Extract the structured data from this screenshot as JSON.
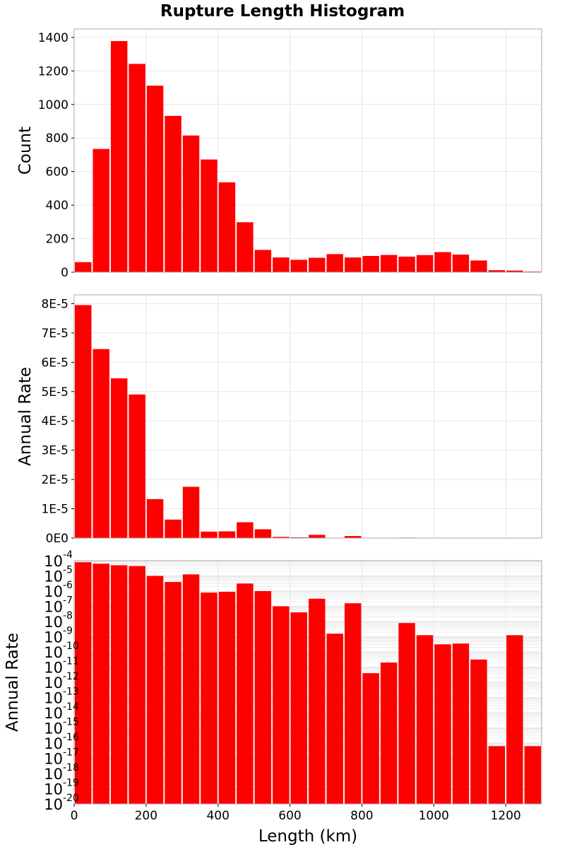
{
  "chart_data": {
    "title": "Rupture Length Histogram",
    "type": "bar",
    "bar_color": "#ff0000",
    "grid_color": "#e6e6e6",
    "x": {
      "label": "Length (km)",
      "range": [
        0,
        1300
      ],
      "ticks": [
        0,
        200,
        400,
        600,
        800,
        1000,
        1200
      ],
      "bin_width": 50,
      "bin_starts": [
        0,
        50,
        100,
        150,
        200,
        250,
        300,
        350,
        400,
        450,
        500,
        550,
        600,
        650,
        700,
        750,
        800,
        850,
        900,
        950,
        1000,
        1050,
        1100,
        1150,
        1200,
        1250
      ]
    },
    "panels": [
      {
        "ylabel": "Count",
        "scale": "linear",
        "ylim": [
          0,
          1450
        ],
        "yticks": [
          0,
          200,
          400,
          600,
          800,
          1000,
          1200,
          1400
        ],
        "ytick_labels": [
          "0",
          "200",
          "400",
          "600",
          "800",
          "1000",
          "1200",
          "1400"
        ],
        "values": [
          60,
          735,
          1378,
          1242,
          1112,
          932,
          815,
          672,
          536,
          298,
          133,
          88,
          74,
          86,
          108,
          88,
          97,
          103,
          93,
          102,
          120,
          105,
          70,
          12,
          10,
          4
        ]
      },
      {
        "ylabel": "Annual Rate",
        "scale": "linear",
        "ylim": [
          0,
          8.3e-05
        ],
        "yticks": [
          0,
          1e-05,
          2e-05,
          3e-05,
          4e-05,
          5e-05,
          6e-05,
          7e-05,
          8e-05
        ],
        "ytick_labels": [
          "0E0",
          "1E-5",
          "2E-5",
          "3E-5",
          "4E-5",
          "5E-5",
          "6E-5",
          "7E-5",
          "8E-5"
        ],
        "values": [
          7.95e-05,
          6.45e-05,
          5.45e-05,
          4.9e-05,
          1.33e-05,
          6.3e-06,
          1.75e-05,
          2.2e-06,
          2.3e-06,
          5.4e-06,
          3e-06,
          4e-07,
          2.5e-07,
          1.1e-06,
          4e-08,
          7e-07,
          3e-09,
          4e-09,
          1.5e-07,
          5e-08,
          2e-08,
          1.5e-08,
          2e-09,
          5e-16,
          3e-08,
          5e-16
        ]
      },
      {
        "ylabel": "Annual Rate",
        "scale": "log",
        "ylim_exp": [
          -20,
          -4
        ],
        "tick_base": "10",
        "tick_exponents": [
          "-4",
          "-5",
          "-6",
          "-7",
          "-8",
          "-9",
          "-10",
          "-11",
          "-12",
          "-13",
          "-14",
          "-15",
          "-16",
          "-17",
          "-18",
          "-19",
          "-20"
        ],
        "values_log10": [
          -4.1,
          -4.2,
          -4.3,
          -4.35,
          -5.0,
          -5.4,
          -4.9,
          -6.1,
          -6.05,
          -5.5,
          -6.0,
          -7.0,
          -7.4,
          -6.5,
          -8.8,
          -6.8,
          -11.4,
          -10.7,
          -8.1,
          -8.9,
          -9.5,
          -9.45,
          -10.5,
          -16.2,
          -8.9,
          -16.2
        ]
      }
    ]
  }
}
